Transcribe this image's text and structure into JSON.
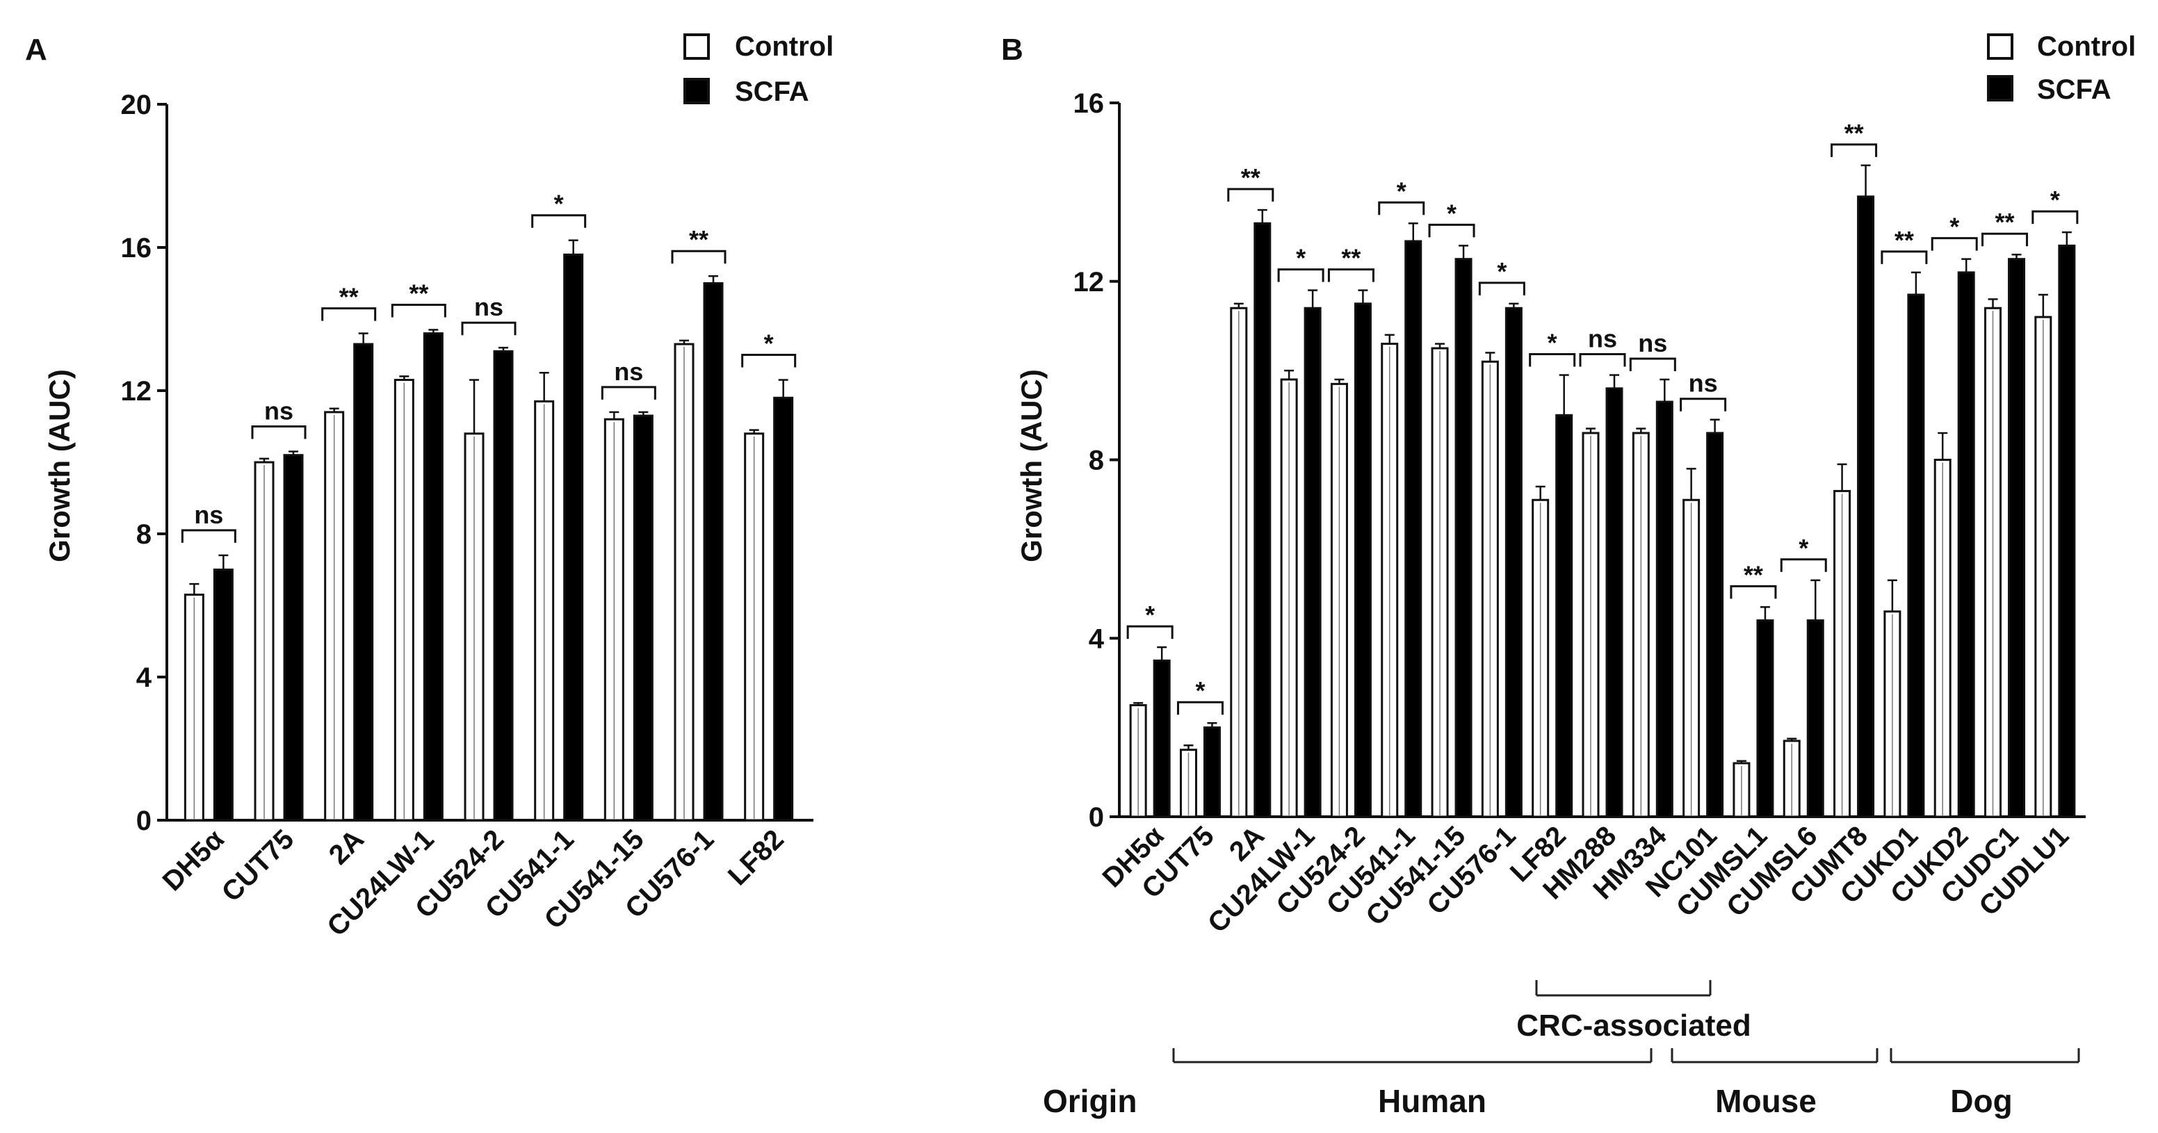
{
  "chart_data": [
    {
      "panel": "A",
      "type": "bar",
      "title": "",
      "xlabel": "",
      "ylabel": "Growth (AUC)",
      "ylim": [
        0,
        20
      ],
      "yticks": [
        "0",
        "4",
        "8",
        "12",
        "16",
        "20"
      ],
      "legend": {
        "position": "top-right",
        "entries": [
          "Control",
          "SCFA"
        ]
      },
      "categories": [
        "DH5α",
        "CUT75",
        "2A",
        "CU24LW-1",
        "CU524-2",
        "CU541-1",
        "CU541-15",
        "CU576-1",
        "LF82"
      ],
      "series": [
        {
          "name": "Control",
          "values": [
            6.3,
            10.0,
            11.4,
            12.3,
            10.8,
            11.7,
            11.2,
            13.3,
            10.8
          ],
          "errors": [
            0.3,
            0.1,
            0.1,
            0.1,
            1.5,
            0.8,
            0.2,
            0.1,
            0.1
          ]
        },
        {
          "name": "SCFA",
          "values": [
            7.0,
            10.2,
            13.3,
            13.6,
            13.1,
            15.8,
            11.3,
            15.0,
            11.8
          ],
          "errors": [
            0.4,
            0.1,
            0.3,
            0.1,
            0.1,
            0.4,
            0.1,
            0.2,
            0.5
          ]
        }
      ],
      "significance": [
        "ns",
        "ns",
        "**",
        "**",
        "ns",
        "*",
        "ns",
        "**",
        "*"
      ]
    },
    {
      "panel": "B",
      "type": "bar",
      "title": "",
      "xlabel": "",
      "ylabel": "Growth (AUC)",
      "ylim": [
        0,
        16
      ],
      "yticks": [
        "0",
        "4",
        "8",
        "12",
        "16"
      ],
      "legend": {
        "position": "top-right",
        "entries": [
          "Control",
          "SCFA"
        ]
      },
      "categories": [
        "DH5α",
        "CUT75",
        "2A",
        "CU24LW-1",
        "CU524-2",
        "CU541-1",
        "CU541-15",
        "CU576-1",
        "LF82",
        "HM288",
        "HM334",
        "NC101",
        "CUMSL1",
        "CUMSL6",
        "CUMT8",
        "CUKD1",
        "CUKD2",
        "CUDC1",
        "CUDLU1"
      ],
      "series": [
        {
          "name": "Control",
          "values": [
            2.5,
            1.5,
            11.4,
            9.8,
            9.7,
            10.6,
            10.5,
            10.2,
            7.1,
            8.6,
            8.6,
            7.1,
            1.2,
            1.7,
            7.3,
            4.6,
            8.0,
            11.4,
            11.2
          ],
          "errors": [
            0.05,
            0.1,
            0.1,
            0.2,
            0.1,
            0.2,
            0.1,
            0.2,
            0.3,
            0.1,
            0.1,
            0.7,
            0.05,
            0.05,
            0.6,
            0.7,
            0.6,
            0.2,
            0.5
          ]
        },
        {
          "name": "SCFA",
          "values": [
            3.5,
            2.0,
            13.3,
            11.4,
            11.5,
            12.9,
            12.5,
            11.4,
            9.0,
            9.6,
            9.3,
            8.6,
            4.4,
            4.4,
            13.9,
            11.7,
            12.2,
            12.5,
            12.8
          ],
          "errors": [
            0.3,
            0.1,
            0.3,
            0.4,
            0.3,
            0.4,
            0.3,
            0.1,
            0.9,
            0.3,
            0.5,
            0.3,
            0.3,
            0.9,
            0.7,
            0.5,
            0.3,
            0.1,
            0.3
          ]
        }
      ],
      "significance": [
        "*",
        "*",
        "**",
        "*",
        "**",
        "*",
        "*",
        "*",
        "*",
        "ns",
        "ns",
        "ns",
        "**",
        "*",
        "**",
        "**",
        "*",
        "**",
        "*"
      ],
      "groups": {
        "crc_label": "CRC-associated",
        "origin_label": "Origin",
        "origins": [
          "Human",
          "Mouse",
          "Dog"
        ]
      }
    }
  ]
}
